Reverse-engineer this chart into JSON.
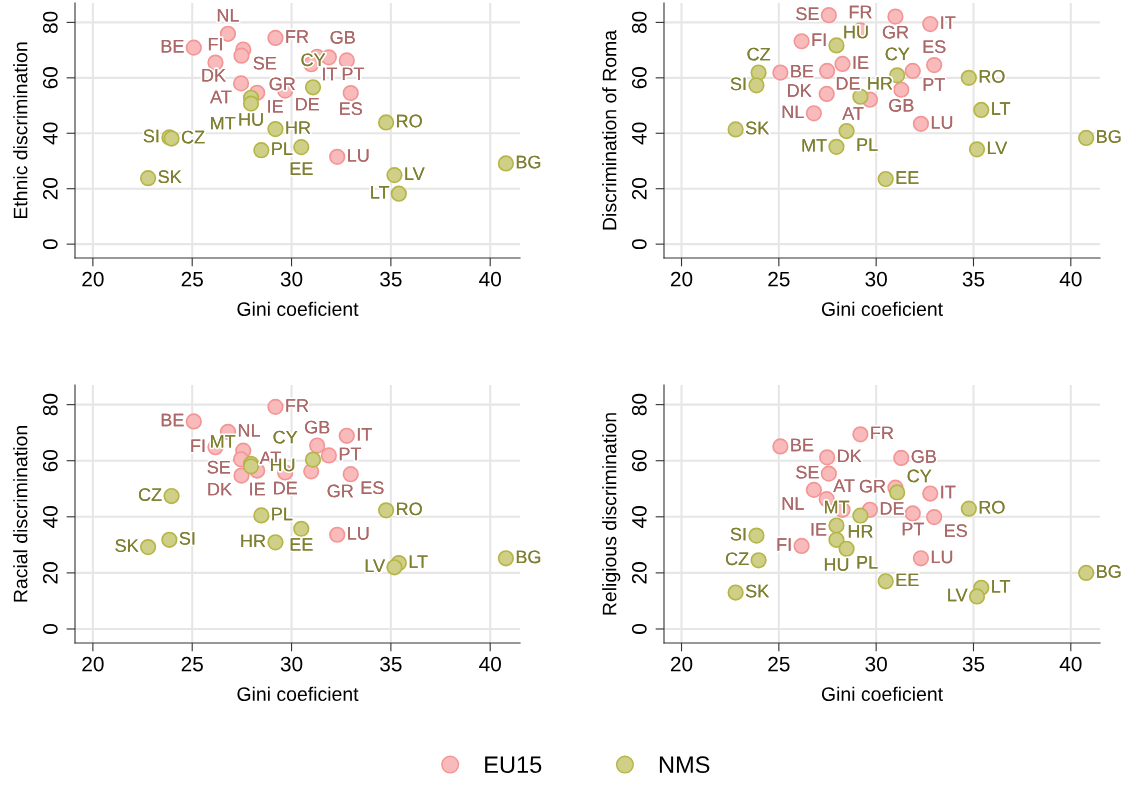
{
  "chart_data": [
    {
      "type": "scatter",
      "xlabel": "Gini coeficient",
      "ylabel": "Ethnic discrimination",
      "xlim": [
        19.1,
        41.5
      ],
      "ylim": [
        -5,
        87
      ],
      "xticks": [
        20,
        25,
        30,
        35,
        40
      ],
      "yticks": [
        0,
        20,
        40,
        60,
        80
      ],
      "grid": true,
      "marker": "circle",
      "legend": "bottom",
      "series": [
        {
          "name": "EU15",
          "color": "#f49595",
          "x": [
            26.8,
            29.19,
            25.08,
            27.57,
            27.48,
            26.17,
            31.29,
            31.88,
            32.78,
            30.99,
            27.46,
            28.27,
            29.68,
            32.98,
            32.3
          ],
          "values": [
            75.9,
            74.4,
            70.9,
            70.2,
            68.0,
            65.5,
            67.6,
            67.4,
            66.3,
            64.9,
            58.0,
            54.6,
            55.4,
            54.5,
            31.5
          ],
          "value_labels": [
            "NL",
            "FR",
            "BE",
            "SE",
            "DK",
            "FI",
            "GB",
            "PT",
            "IT",
            "GR",
            "AT",
            "IE",
            "DE",
            "ES",
            "LU"
          ]
        },
        {
          "name": "NMS",
          "color": "#b5b548",
          "x": [
            31.08,
            27.96,
            27.96,
            34.76,
            23.85,
            23.96,
            29.19,
            28.48,
            30.49,
            40.79,
            22.78,
            35.18,
            35.4
          ],
          "values": [
            56.6,
            52.8,
            50.7,
            43.9,
            38.5,
            38.1,
            41.5,
            33.9,
            35.0,
            29.1,
            23.8,
            24.9,
            18.2
          ],
          "value_labels": [
            "CY",
            "HU",
            "MT",
            "RO",
            "SI",
            "CZ",
            "HR",
            "PL",
            "EE",
            "BG",
            "SK",
            "LV",
            "LT"
          ]
        }
      ]
    },
    {
      "type": "scatter",
      "xlabel": "Gini coeficient",
      "ylabel": "Discrimination of Roma",
      "xlim": [
        19.1,
        41.5
      ],
      "ylim": [
        -5,
        87
      ],
      "xticks": [
        20,
        25,
        30,
        35,
        40
      ],
      "yticks": [
        0,
        20,
        40,
        60,
        80
      ],
      "grid": true,
      "marker": "circle",
      "series": [
        {
          "name": "EU15",
          "color": "#f49595",
          "x": [
            27.57,
            30.99,
            32.78,
            29.19,
            26.17,
            28.27,
            32.98,
            25.08,
            27.48,
            31.88,
            31.29,
            27.46,
            29.68,
            26.8,
            32.3
          ],
          "values": [
            82.6,
            82.1,
            79.4,
            77.1,
            73.2,
            65.0,
            64.6,
            61.9,
            62.5,
            62.5,
            55.7,
            54.2,
            52.1,
            47.2,
            43.4
          ],
          "value_labels": [
            "SE",
            "GR",
            "IT",
            "FR",
            "FI",
            "IE",
            "ES",
            "BE",
            "DK",
            "PT",
            "GB",
            "AT",
            "DE",
            "NL",
            "LU"
          ]
        },
        {
          "name": "NMS",
          "color": "#b5b548",
          "x": [
            27.96,
            23.96,
            31.08,
            34.76,
            23.85,
            29.19,
            35.4,
            22.78,
            28.48,
            40.79,
            27.96,
            35.18,
            30.49
          ],
          "values": [
            71.7,
            61.9,
            60.9,
            60.0,
            57.3,
            53.2,
            48.4,
            41.4,
            40.8,
            38.3,
            35.1,
            34.2,
            23.5
          ],
          "value_labels": [
            "HU",
            "CZ",
            "CY",
            "RO",
            "SI",
            "HR",
            "LT",
            "SK",
            "PL",
            "BG",
            "MT",
            "LV",
            "EE"
          ]
        }
      ]
    },
    {
      "type": "scatter",
      "xlabel": "Gini coeficient",
      "ylabel": "Racial discrimination",
      "xlim": [
        19.1,
        41.5
      ],
      "ylim": [
        -5,
        87
      ],
      "xticks": [
        20,
        25,
        30,
        35,
        40
      ],
      "yticks": [
        0,
        20,
        40,
        60,
        80
      ],
      "grid": true,
      "marker": "circle",
      "series": [
        {
          "name": "EU15",
          "color": "#f49595",
          "x": [
            29.19,
            25.08,
            26.8,
            32.78,
            26.17,
            31.29,
            27.57,
            31.88,
            27.46,
            28.27,
            27.48,
            29.68,
            30.99,
            32.98,
            32.3
          ],
          "values": [
            79.2,
            74.0,
            70.3,
            68.9,
            64.8,
            65.4,
            63.6,
            61.9,
            60.5,
            56.5,
            54.7,
            55.8,
            56.2,
            55.2,
            33.6
          ],
          "value_labels": [
            "FR",
            "BE",
            "NL",
            "IT",
            "FI",
            "GB",
            "SE",
            "PT",
            "AT",
            "IE",
            "DK",
            "DE",
            "GR",
            "ES",
            "LU"
          ]
        },
        {
          "name": "NMS",
          "color": "#b5b548",
          "x": [
            31.08,
            27.96,
            27.96,
            23.96,
            34.76,
            28.48,
            30.49,
            23.85,
            29.19,
            22.78,
            40.79,
            35.4,
            35.18
          ],
          "values": [
            60.4,
            58.9,
            58.0,
            47.4,
            42.3,
            40.5,
            35.7,
            31.8,
            30.9,
            29.2,
            25.2,
            23.5,
            22.0
          ],
          "value_labels": [
            "CY",
            "MT",
            "HU",
            "CZ",
            "RO",
            "PL",
            "EE",
            "SI",
            "HR",
            "SK",
            "BG",
            "LT",
            "LV"
          ]
        }
      ]
    },
    {
      "type": "scatter",
      "xlabel": "Gini coeficient",
      "ylabel": "Religious discrimination",
      "xlim": [
        19.1,
        41.5
      ],
      "ylim": [
        -5,
        87
      ],
      "xticks": [
        20,
        25,
        30,
        35,
        40
      ],
      "yticks": [
        0,
        20,
        40,
        60,
        80
      ],
      "grid": true,
      "marker": "circle",
      "series": [
        {
          "name": "EU15",
          "color": "#f49595",
          "x": [
            29.19,
            25.08,
            27.48,
            31.29,
            27.57,
            30.99,
            32.78,
            26.8,
            27.46,
            28.27,
            29.68,
            31.88,
            32.98,
            26.17,
            32.3
          ],
          "values": [
            69.4,
            65.1,
            61.2,
            61.0,
            55.4,
            50.4,
            48.3,
            49.6,
            46.3,
            42.5,
            42.5,
            41.2,
            39.9,
            29.6,
            25.2
          ],
          "value_labels": [
            "FR",
            "BE",
            "DK",
            "GB",
            "SE",
            "GR",
            "IT",
            "NL",
            "AT",
            "IE",
            "DE",
            "PT",
            "ES",
            "FI",
            "LU"
          ]
        },
        {
          "name": "NMS",
          "color": "#b5b548",
          "x": [
            31.08,
            34.76,
            29.19,
            27.96,
            23.85,
            27.96,
            28.48,
            23.96,
            40.79,
            30.49,
            35.4,
            22.78,
            35.18
          ],
          "values": [
            48.7,
            42.9,
            40.4,
            36.9,
            33.3,
            31.8,
            28.6,
            24.5,
            20.0,
            17.0,
            14.7,
            13.0,
            11.6
          ],
          "value_labels": [
            "CY",
            "RO",
            "HR",
            "MT",
            "SI",
            "HU",
            "PL",
            "CZ",
            "BG",
            "EE",
            "LT",
            "SK",
            "LV"
          ]
        }
      ]
    }
  ]
}
